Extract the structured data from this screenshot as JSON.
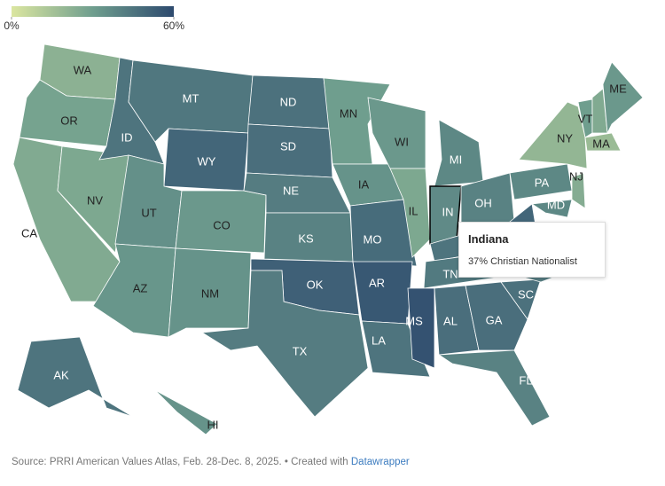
{
  "legend": {
    "ticks": [
      {
        "value": 0,
        "label": "0%"
      },
      {
        "value": 60,
        "label": "60%"
      }
    ],
    "colors": [
      "#dbe6a0",
      "#6f9e8e",
      "#2d4a6e"
    ]
  },
  "states": [
    {
      "label": "WA",
      "value": 22
    },
    {
      "label": "OR",
      "value": 28
    },
    {
      "label": "CA",
      "value": 25
    },
    {
      "label": "NV",
      "value": 26
    },
    {
      "label": "ID",
      "value": 45
    },
    {
      "label": "MT",
      "value": 44
    },
    {
      "label": "WY",
      "value": 50
    },
    {
      "label": "UT",
      "value": 35
    },
    {
      "label": "CO",
      "value": 32
    },
    {
      "label": "AZ",
      "value": 33
    },
    {
      "label": "NM",
      "value": 34
    },
    {
      "label": "ND",
      "value": 46
    },
    {
      "label": "SD",
      "value": 47
    },
    {
      "label": "NE",
      "value": 42
    },
    {
      "label": "KS",
      "value": 40
    },
    {
      "label": "OK",
      "value": 52
    },
    {
      "label": "TX",
      "value": 42
    },
    {
      "label": "MN",
      "value": 30
    },
    {
      "label": "IA",
      "value": 34
    },
    {
      "label": "MO",
      "value": 48
    },
    {
      "label": "AR",
      "value": 55
    },
    {
      "label": "LA",
      "value": 45
    },
    {
      "label": "WI",
      "value": 32
    },
    {
      "label": "IL",
      "value": 26
    },
    {
      "label": "MI",
      "value": 38
    },
    {
      "label": "IN",
      "value": 37
    },
    {
      "label": "OH",
      "value": 40
    },
    {
      "label": null,
      "value": 45
    },
    {
      "label": "TN",
      "value": 43
    },
    {
      "label": "MS",
      "value": 57
    },
    {
      "label": "AL",
      "value": 47
    },
    {
      "label": "GA",
      "value": 47
    },
    {
      "label": "FL",
      "value": 40
    },
    {
      "label": "SC",
      "value": 46
    },
    {
      "label": null,
      "value": 42
    },
    {
      "label": null,
      "value": 38
    },
    {
      "label": null,
      "value": 50
    },
    {
      "label": "PA",
      "value": 38
    },
    {
      "label": "NY",
      "value": 20
    },
    {
      "label": "VT",
      "value": 30
    },
    {
      "label": null,
      "value": 25
    },
    {
      "label": "ME",
      "value": 32
    },
    {
      "label": "MA",
      "value": 18
    },
    {
      "label": "NJ",
      "value": 24
    },
    {
      "label": "MD",
      "value": 38
    },
    {
      "label": "AK",
      "value": 45
    },
    {
      "label": "HI",
      "value": 34
    }
  ],
  "highlight": 25,
  "tooltip": {
    "title": "Indiana",
    "text": "37% Christian Nationalist"
  },
  "source": {
    "text": "Source: PRRI American Values Atlas, Feb. 28-Dec. 8, 2025. • Created with",
    "link": "Datawrapper"
  }
}
